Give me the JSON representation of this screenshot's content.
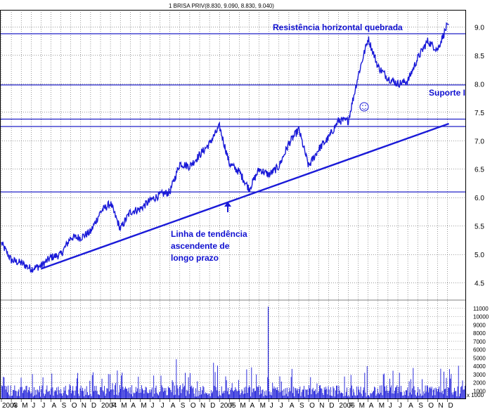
{
  "chart_data": {
    "type": "line",
    "title": "1 BRISA PRIV(8.830, 9.090, 8.830, 9.040)",
    "price_axis": {
      "ylim": [
        4.2,
        9.3
      ],
      "ticks": [
        "4.5",
        "5.0",
        "5.5",
        "6.0",
        "6.5",
        "7.0",
        "7.5",
        "8.0",
        "8.5",
        "9.0"
      ]
    },
    "volume_axis": {
      "ylim": [
        0,
        12000
      ],
      "ticks": [
        "1000",
        "2000",
        "3000",
        "4000",
        "5000",
        "6000",
        "7000",
        "8000",
        "9000",
        "10000",
        "11000"
      ],
      "unit": "x 1000"
    },
    "x_axis": {
      "labels": [
        "2003",
        "A",
        "M",
        "J",
        "J",
        "A",
        "S",
        "O",
        "N",
        "D",
        "2004",
        "F",
        "M",
        "A",
        "M",
        "J",
        "J",
        "A",
        "S",
        "O",
        "N",
        "D",
        "2005",
        "F",
        "M",
        "A",
        "M",
        "J",
        "J",
        "A",
        "S",
        "O",
        "N",
        "D",
        "2006",
        "F",
        "M",
        "A",
        "M",
        "J",
        "J",
        "A",
        "S",
        "O",
        "N",
        "D"
      ]
    },
    "series": [
      {
        "values": [
          [
            "2003-03",
            5.2
          ],
          [
            "2003-04",
            4.9
          ],
          [
            "2003-05",
            4.85
          ],
          [
            "2003-06",
            4.75
          ],
          [
            "2003-07",
            4.8
          ],
          [
            "2003-08",
            4.95
          ],
          [
            "2003-09",
            5.0
          ],
          [
            "2003-10",
            5.3
          ],
          [
            "2003-11",
            5.3
          ],
          [
            "2003-12",
            5.4
          ],
          [
            "2004-01",
            5.75
          ],
          [
            "2004-02",
            5.9
          ],
          [
            "2004-03",
            5.45
          ],
          [
            "2004-04",
            5.75
          ],
          [
            "2004-05",
            5.8
          ],
          [
            "2004-06",
            5.95
          ],
          [
            "2004-07",
            6.05
          ],
          [
            "2004-08",
            6.1
          ],
          [
            "2004-09",
            6.6
          ],
          [
            "2004-10",
            6.55
          ],
          [
            "2004-11",
            6.75
          ],
          [
            "2004-12",
            6.95
          ],
          [
            "2005-01",
            7.25
          ],
          [
            "2005-02",
            6.6
          ],
          [
            "2005-03",
            6.45
          ],
          [
            "2005-04",
            6.15
          ],
          [
            "2005-05",
            6.5
          ],
          [
            "2005-06",
            6.4
          ],
          [
            "2005-07",
            6.55
          ],
          [
            "2005-08",
            6.95
          ],
          [
            "2005-09",
            7.2
          ],
          [
            "2005-10",
            6.55
          ],
          [
            "2005-11",
            6.85
          ],
          [
            "2005-12",
            7.05
          ],
          [
            "2006-01",
            7.35
          ],
          [
            "2006-02",
            7.35
          ],
          [
            "2006-03",
            8.15
          ],
          [
            "2006-04",
            8.8
          ],
          [
            "2006-05",
            8.3
          ],
          [
            "2006-06",
            8.1
          ],
          [
            "2006-07",
            8.0
          ],
          [
            "2006-08",
            8.05
          ],
          [
            "2006-09",
            8.45
          ],
          [
            "2006-10",
            8.75
          ],
          [
            "2006-11",
            8.6
          ],
          [
            "2006-12",
            9.04
          ]
        ]
      }
    ],
    "horizontal_lines": [
      8.88,
      7.98,
      7.38,
      7.25,
      6.1
    ],
    "trendline": [
      [
        "2003-07",
        4.75
      ],
      [
        "2006-12",
        7.3
      ]
    ],
    "annotations": [
      {
        "text": "Resistência horizontal quebrada"
      },
      {
        "text": "Suporte I"
      },
      {
        "lines": [
          "Linha de tendência",
          "ascendente de",
          "longo prazo"
        ]
      }
    ],
    "colors": {
      "line": "#1a1ad8",
      "hlines": "#2020c8",
      "grid": "#000000",
      "volume": "#1a1ad8"
    },
    "grid": true
  }
}
